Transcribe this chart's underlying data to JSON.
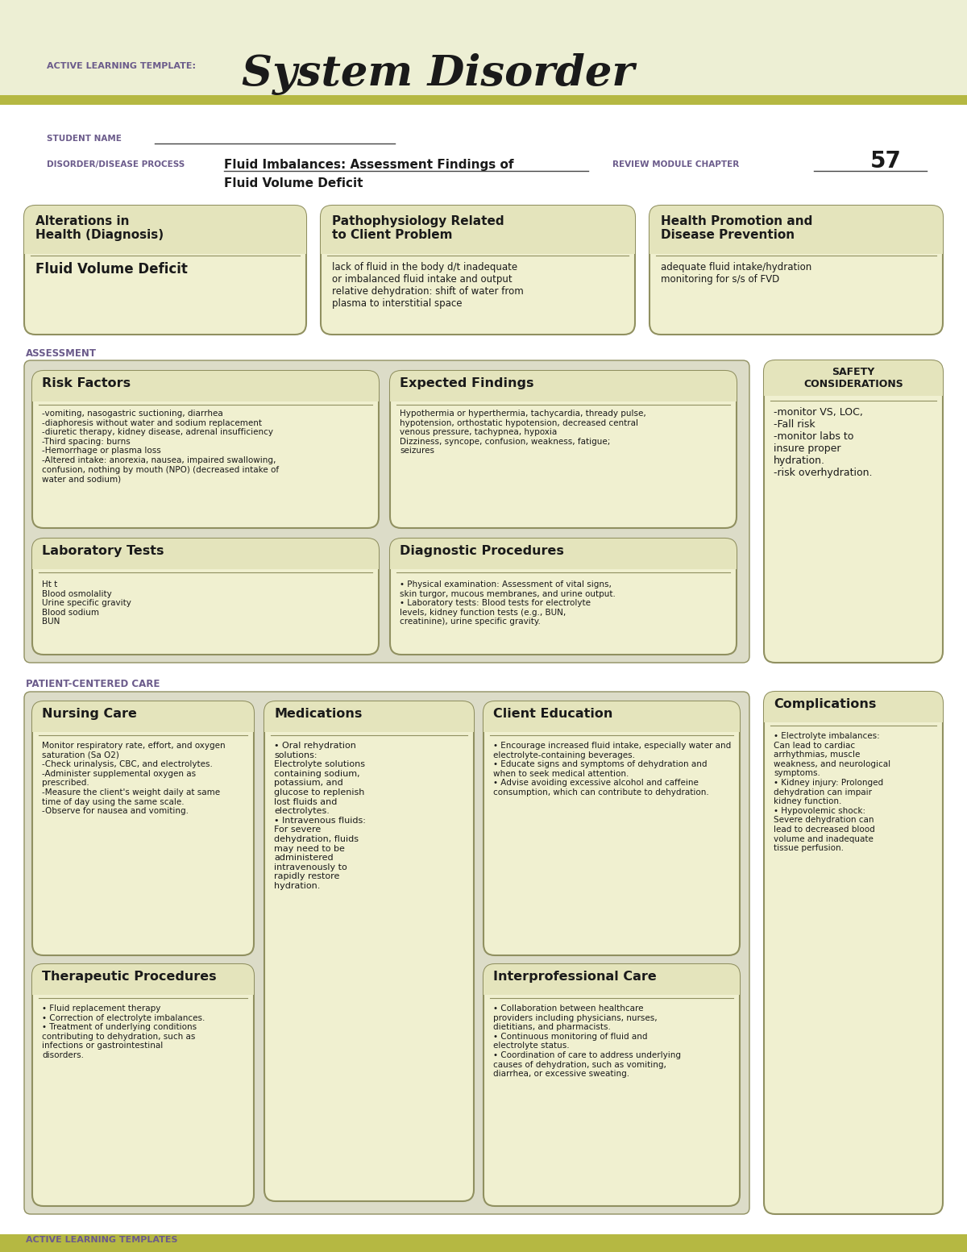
{
  "bg_color": "#edefd4",
  "header_bar_color": "#b5b842",
  "white_bg": "#ffffff",
  "box_fill": "#f0f0d0",
  "box_border": "#909060",
  "assess_bg": "#dcdcc8",
  "purple_text": "#6b5b8b",
  "dark_text": "#1a1a1a",
  "olive_text": "#6b6b20",
  "title_label": "ACTIVE LEARNING TEMPLATE:",
  "title_main": "System Disorder",
  "student_label": "STUDENT NAME",
  "disorder_label": "DISORDER/DISEASE PROCESS",
  "disorder_line1": "Fluid Imbalances: Assessment Findings of",
  "disorder_line2": "Fluid Volume Deficit",
  "module_label": "REVIEW MODULE CHAPTER",
  "module_number": "57",
  "section1_title": "Alterations in\nHealth (Diagnosis)",
  "section1_body": "Fluid Volume Deficit",
  "section2_title": "Pathophysiology Related\nto Client Problem",
  "section2_body": "lack of fluid in the body d/t inadequate\nor imbalanced fluid intake and output\nrelative dehydration: shift of water from\nplasma to interstitial space",
  "section3_title": "Health Promotion and\nDisease Prevention",
  "section3_body": "adequate fluid intake/hydration\nmonitoring for s/s of FVD",
  "assessment_label": "ASSESSMENT",
  "safety_label": "SAFETY\nCONSIDERATIONS",
  "risk_title": "Risk Factors",
  "risk_body": "-vomiting, nasogastric suctioning, diarrhea\n-diaphoresis without water and sodium replacement\n-diuretic therapy, kidney disease, adrenal insufficiency\n-Third spacing: burns\n-Hemorrhage or plasma loss\n-Altered intake: anorexia, nausea, impaired swallowing,\nconfusion, nothing by mouth (NPO) (decreased intake of\nwater and sodium)",
  "expected_title": "Expected Findings",
  "expected_body": "Hypothermia or hyperthermia, tachycardia, thready pulse,\nhypotension, orthostatic hypotension, decreased central\nvenous pressure, tachypnea, hypoxia\nDizziness, syncope, confusion, weakness, fatigue;\nseizures",
  "safety_body": "-monitor VS, LOC,\n-Fall risk\n-monitor labs to\ninsure proper\nhydration.\n-risk overhydration.",
  "lab_title": "Laboratory Tests",
  "lab_body": "Ht t\nBlood osmolality\nUrine specific gravity\nBlood sodium\nBUN",
  "diag_title": "Diagnostic Procedures",
  "diag_body": "• Physical examination: Assessment of vital signs,\nskin turgor, mucous membranes, and urine output.\n• Laboratory tests: Blood tests for electrolyte\nlevels, kidney function tests (e.g., BUN,\ncreatinine), urine specific gravity.",
  "patient_label": "PATIENT-CENTERED CARE",
  "nursing_title": "Nursing Care",
  "nursing_body": "Monitor respiratory rate, effort, and oxygen\nsaturation (Sa O2)\n-Check urinalysis, CBC, and electrolytes.\n-Administer supplemental oxygen as\nprescribed.\n-Measure the client's weight daily at same\ntime of day using the same scale.\n-Observe for nausea and vomiting.",
  "meds_title": "Medications",
  "meds_body": "• Oral rehydration\nsolutions:\nElectrolyte solutions\ncontaining sodium,\npotassium, and\nglucose to replenish\nlost fluids and\nelectrolytes.\n• Intravenous fluids:\nFor severe\ndehydration, fluids\nmay need to be\nadministered\nintravenously to\nrapidly restore\nhydration.",
  "client_edu_title": "Client Education",
  "client_edu_body": "• Encourage increased fluid intake, especially water and\nelectrolyte-containing beverages.\n• Educate signs and symptoms of dehydration and\nwhen to seek medical attention.\n• Advise avoiding excessive alcohol and caffeine\nconsumption, which can contribute to dehydration.",
  "complications_title": "Complications",
  "complications_body": "• Electrolyte imbalances:\nCan lead to cardiac\narrhythmias, muscle\nweakness, and neurological\nsymptoms.\n• Kidney injury: Prolonged\ndehydration can impair\nkidney function.\n• Hypovolemic shock:\nSevere dehydration can\nlead to decreased blood\nvolume and inadequate\ntissue perfusion.",
  "therapeutic_title": "Therapeutic Procedures",
  "therapeutic_body": "• Fluid replacement therapy\n• Correction of electrolyte imbalances.\n• Treatment of underlying conditions\ncontributing to dehydration, such as\ninfections or gastrointestinal\ndisorders.",
  "interpro_title": "Interprofessional Care",
  "interpro_body": "• Collaboration between healthcare\nproviders including physicians, nurses,\ndietitians, and pharmacists.\n• Continuous monitoring of fluid and\nelectrolyte status.\n• Coordination of care to address underlying\ncauses of dehydration, such as vomiting,\ndiarrhea, or excessive sweating.",
  "footer_text": "ACTIVE LEARNING TEMPLATES"
}
